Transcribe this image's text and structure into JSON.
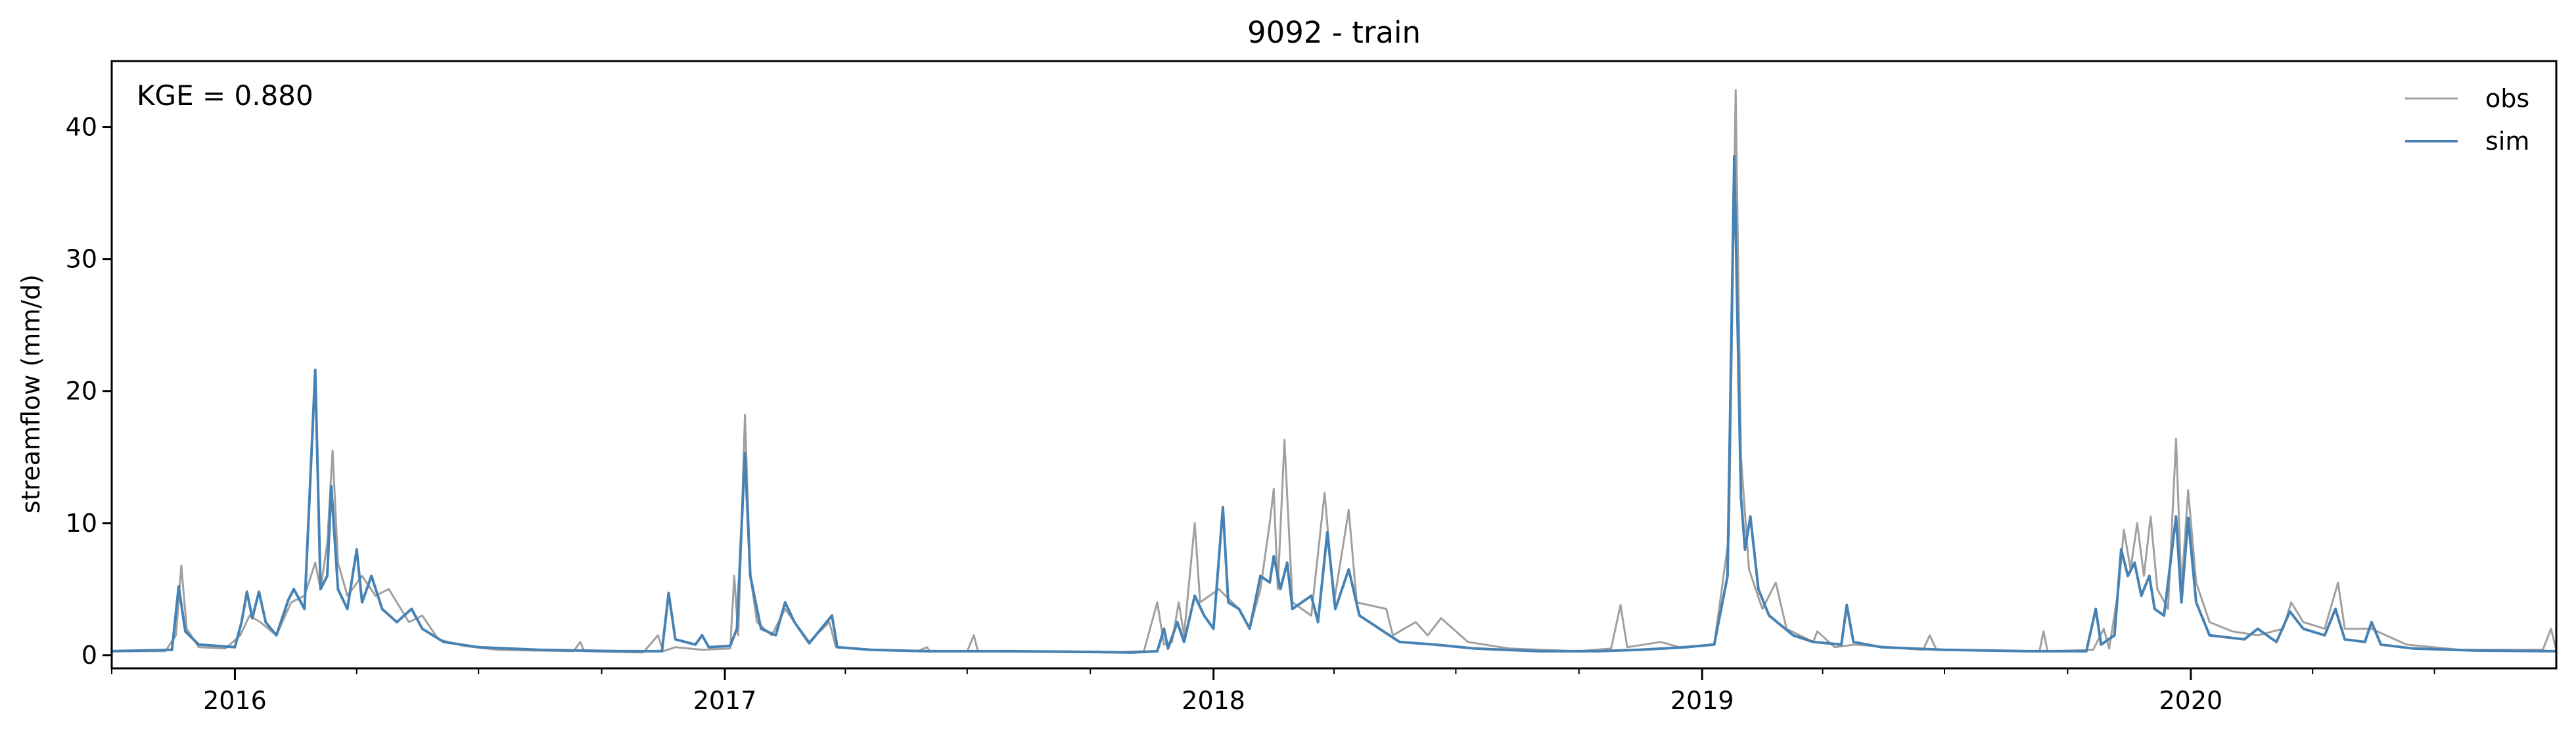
{
  "chart_data": {
    "type": "line",
    "title": "9092 - train",
    "xlabel": "",
    "ylabel": "streamflow (mm/d)",
    "xlim": [
      "2015-10-01",
      "2020-09-30"
    ],
    "ylim": [
      -1,
      45
    ],
    "yticks": [
      0,
      10,
      20,
      30,
      40
    ],
    "xticks": [
      {
        "label": "2016",
        "date": "2016-01-01"
      },
      {
        "label": "2017",
        "date": "2017-01-01"
      },
      {
        "label": "2018",
        "date": "2018-01-01"
      },
      {
        "label": "2019",
        "date": "2019-01-01"
      },
      {
        "label": "2020",
        "date": "2020-01-01"
      }
    ],
    "grid": false,
    "legend_position": "top-right",
    "annotation": "KGE = 0.880",
    "series": [
      {
        "name": "obs",
        "color": "#a0a0a0",
        "points": [
          [
            "2015-10-01",
            0.3
          ],
          [
            "2015-11-10",
            0.3
          ],
          [
            "2015-11-18",
            1.5
          ],
          [
            "2015-11-22",
            6.8
          ],
          [
            "2015-11-26",
            2.0
          ],
          [
            "2015-12-05",
            0.6
          ],
          [
            "2015-12-25",
            0.5
          ],
          [
            "2016-01-05",
            1.5
          ],
          [
            "2016-01-12",
            3.0
          ],
          [
            "2016-01-20",
            2.5
          ],
          [
            "2016-02-01",
            1.5
          ],
          [
            "2016-02-12",
            4.0
          ],
          [
            "2016-02-22",
            4.5
          ],
          [
            "2016-03-01",
            7.0
          ],
          [
            "2016-03-05",
            5.0
          ],
          [
            "2016-03-10",
            8.5
          ],
          [
            "2016-03-14",
            15.5
          ],
          [
            "2016-03-18",
            7.0
          ],
          [
            "2016-03-25",
            4.5
          ],
          [
            "2016-04-05",
            6.0
          ],
          [
            "2016-04-15",
            4.5
          ],
          [
            "2016-04-25",
            5.0
          ],
          [
            "2016-05-10",
            2.5
          ],
          [
            "2016-05-20",
            3.0
          ],
          [
            "2016-06-01",
            1.2
          ],
          [
            "2016-06-20",
            0.7
          ],
          [
            "2016-07-15",
            0.4
          ],
          [
            "2016-09-10",
            0.3
          ],
          [
            "2016-09-15",
            1.0
          ],
          [
            "2016-09-18",
            0.3
          ],
          [
            "2016-11-01",
            0.2
          ],
          [
            "2016-11-12",
            1.5
          ],
          [
            "2016-11-16",
            0.3
          ],
          [
            "2016-11-25",
            0.6
          ],
          [
            "2016-12-15",
            0.4
          ],
          [
            "2017-01-05",
            0.5
          ],
          [
            "2017-01-08",
            6.0
          ],
          [
            "2017-01-11",
            1.5
          ],
          [
            "2017-01-16",
            18.2
          ],
          [
            "2017-01-20",
            6.0
          ],
          [
            "2017-01-25",
            2.5
          ],
          [
            "2017-02-05",
            1.5
          ],
          [
            "2017-02-15",
            3.5
          ],
          [
            "2017-02-22",
            2.5
          ],
          [
            "2017-03-05",
            1.0
          ],
          [
            "2017-03-20",
            2.5
          ],
          [
            "2017-03-25",
            0.6
          ],
          [
            "2017-04-20",
            0.4
          ],
          [
            "2017-05-25",
            0.3
          ],
          [
            "2017-06-01",
            0.6
          ],
          [
            "2017-06-03",
            0.3
          ],
          [
            "2017-07-01",
            0.3
          ],
          [
            "2017-07-06",
            1.5
          ],
          [
            "2017-07-09",
            0.3
          ],
          [
            "2017-10-15",
            0.2
          ],
          [
            "2017-11-10",
            0.3
          ],
          [
            "2017-11-20",
            4.0
          ],
          [
            "2017-11-25",
            0.8
          ],
          [
            "2017-12-01",
            1.0
          ],
          [
            "2017-12-06",
            4.0
          ],
          [
            "2017-12-10",
            1.5
          ],
          [
            "2017-12-18",
            10.0
          ],
          [
            "2017-12-22",
            4.0
          ],
          [
            "2018-01-05",
            5.0
          ],
          [
            "2018-01-15",
            4.0
          ],
          [
            "2018-01-20",
            3.5
          ],
          [
            "2018-01-28",
            2.0
          ],
          [
            "2018-02-05",
            5.0
          ],
          [
            "2018-02-12",
            10.0
          ],
          [
            "2018-02-15",
            12.6
          ],
          [
            "2018-02-18",
            5.0
          ],
          [
            "2018-02-23",
            16.3
          ],
          [
            "2018-03-01",
            4.0
          ],
          [
            "2018-03-15",
            3.0
          ],
          [
            "2018-03-25",
            12.3
          ],
          [
            "2018-04-01",
            4.0
          ],
          [
            "2018-04-12",
            11.0
          ],
          [
            "2018-04-18",
            4.0
          ],
          [
            "2018-05-10",
            3.5
          ],
          [
            "2018-05-15",
            1.5
          ],
          [
            "2018-06-01",
            2.5
          ],
          [
            "2018-06-10",
            1.5
          ],
          [
            "2018-06-20",
            2.8
          ],
          [
            "2018-07-10",
            1.0
          ],
          [
            "2018-08-10",
            0.5
          ],
          [
            "2018-09-30",
            0.3
          ],
          [
            "2018-10-25",
            0.5
          ],
          [
            "2018-11-01",
            3.8
          ],
          [
            "2018-11-06",
            0.6
          ],
          [
            "2018-12-01",
            1.0
          ],
          [
            "2018-12-15",
            0.6
          ],
          [
            "2019-01-10",
            0.8
          ],
          [
            "2019-01-21",
            9.0
          ],
          [
            "2019-01-26",
            42.8
          ],
          [
            "2019-01-30",
            15.0
          ],
          [
            "2019-02-05",
            6.5
          ],
          [
            "2019-02-15",
            3.5
          ],
          [
            "2019-02-25",
            5.5
          ],
          [
            "2019-03-05",
            2.0
          ],
          [
            "2019-03-25",
            1.0
          ],
          [
            "2019-03-28",
            1.8
          ],
          [
            "2019-04-10",
            0.6
          ],
          [
            "2019-04-25",
            0.8
          ],
          [
            "2019-06-15",
            0.4
          ],
          [
            "2019-06-20",
            1.5
          ],
          [
            "2019-06-25",
            0.4
          ],
          [
            "2019-09-10",
            0.3
          ],
          [
            "2019-09-13",
            1.8
          ],
          [
            "2019-09-16",
            0.3
          ],
          [
            "2019-10-20",
            0.4
          ],
          [
            "2019-10-28",
            2.0
          ],
          [
            "2019-11-01",
            0.5
          ],
          [
            "2019-11-08",
            5.0
          ],
          [
            "2019-11-12",
            9.5
          ],
          [
            "2019-11-17",
            6.5
          ],
          [
            "2019-11-22",
            10.0
          ],
          [
            "2019-11-27",
            6.0
          ],
          [
            "2019-12-02",
            10.5
          ],
          [
            "2019-12-07",
            5.0
          ],
          [
            "2019-12-15",
            3.5
          ],
          [
            "2019-12-21",
            16.4
          ],
          [
            "2019-12-25",
            5.0
          ],
          [
            "2019-12-30",
            12.5
          ],
          [
            "2020-01-05",
            5.5
          ],
          [
            "2020-01-15",
            2.5
          ],
          [
            "2020-02-01",
            1.8
          ],
          [
            "2020-02-20",
            1.5
          ],
          [
            "2020-03-10",
            2.0
          ],
          [
            "2020-03-16",
            4.0
          ],
          [
            "2020-03-25",
            2.5
          ],
          [
            "2020-04-10",
            2.0
          ],
          [
            "2020-04-20",
            5.5
          ],
          [
            "2020-04-25",
            2.0
          ],
          [
            "2020-05-15",
            2.0
          ],
          [
            "2020-06-10",
            0.8
          ],
          [
            "2020-07-20",
            0.4
          ],
          [
            "2020-09-20",
            0.4
          ],
          [
            "2020-09-26",
            2.0
          ],
          [
            "2020-09-30",
            0.4
          ]
        ]
      },
      {
        "name": "sim",
        "color": "#4682b4",
        "points": [
          [
            "2015-10-01",
            0.3
          ],
          [
            "2015-11-15",
            0.4
          ],
          [
            "2015-11-20",
            5.2
          ],
          [
            "2015-11-25",
            1.8
          ],
          [
            "2015-12-05",
            0.8
          ],
          [
            "2016-01-01",
            0.6
          ],
          [
            "2016-01-06",
            2.5
          ],
          [
            "2016-01-10",
            4.8
          ],
          [
            "2016-01-14",
            2.8
          ],
          [
            "2016-01-19",
            4.8
          ],
          [
            "2016-01-24",
            2.5
          ],
          [
            "2016-02-01",
            1.5
          ],
          [
            "2016-02-10",
            4.2
          ],
          [
            "2016-02-14",
            5.0
          ],
          [
            "2016-02-22",
            3.5
          ],
          [
            "2016-03-01",
            21.6
          ],
          [
            "2016-03-05",
            5.0
          ],
          [
            "2016-03-10",
            6.0
          ],
          [
            "2016-03-13",
            12.8
          ],
          [
            "2016-03-18",
            5.0
          ],
          [
            "2016-03-25",
            3.5
          ],
          [
            "2016-04-01",
            8.0
          ],
          [
            "2016-04-05",
            4.0
          ],
          [
            "2016-04-12",
            6.0
          ],
          [
            "2016-04-20",
            3.5
          ],
          [
            "2016-05-01",
            2.5
          ],
          [
            "2016-05-12",
            3.5
          ],
          [
            "2016-05-20",
            2.0
          ],
          [
            "2016-06-05",
            1.0
          ],
          [
            "2016-07-01",
            0.6
          ],
          [
            "2016-08-15",
            0.4
          ],
          [
            "2016-10-15",
            0.3
          ],
          [
            "2016-11-15",
            0.3
          ],
          [
            "2016-11-20",
            4.7
          ],
          [
            "2016-11-25",
            1.2
          ],
          [
            "2016-12-10",
            0.8
          ],
          [
            "2016-12-15",
            1.5
          ],
          [
            "2016-12-20",
            0.6
          ],
          [
            "2017-01-05",
            0.7
          ],
          [
            "2017-01-10",
            2.0
          ],
          [
            "2017-01-16",
            15.3
          ],
          [
            "2017-01-20",
            6.0
          ],
          [
            "2017-01-28",
            2.0
          ],
          [
            "2017-02-08",
            1.5
          ],
          [
            "2017-02-15",
            4.0
          ],
          [
            "2017-02-22",
            2.5
          ],
          [
            "2017-03-05",
            0.9
          ],
          [
            "2017-03-22",
            3.0
          ],
          [
            "2017-03-26",
            0.6
          ],
          [
            "2017-04-20",
            0.4
          ],
          [
            "2017-06-01",
            0.3
          ],
          [
            "2017-08-01",
            0.3
          ],
          [
            "2017-10-01",
            0.25
          ],
          [
            "2017-11-01",
            0.2
          ],
          [
            "2017-11-20",
            0.3
          ],
          [
            "2017-11-25",
            2.0
          ],
          [
            "2017-11-28",
            0.5
          ],
          [
            "2017-12-05",
            2.5
          ],
          [
            "2017-12-10",
            1.0
          ],
          [
            "2017-12-18",
            4.5
          ],
          [
            "2017-12-25",
            3.0
          ],
          [
            "2018-01-01",
            2.0
          ],
          [
            "2018-01-08",
            11.2
          ],
          [
            "2018-01-12",
            4.0
          ],
          [
            "2018-01-20",
            3.5
          ],
          [
            "2018-01-28",
            2.0
          ],
          [
            "2018-02-05",
            6.0
          ],
          [
            "2018-02-12",
            5.5
          ],
          [
            "2018-02-15",
            7.5
          ],
          [
            "2018-02-20",
            5.0
          ],
          [
            "2018-02-25",
            7.0
          ],
          [
            "2018-03-01",
            3.5
          ],
          [
            "2018-03-15",
            4.5
          ],
          [
            "2018-03-20",
            2.5
          ],
          [
            "2018-03-27",
            9.3
          ],
          [
            "2018-04-02",
            3.5
          ],
          [
            "2018-04-12",
            6.5
          ],
          [
            "2018-04-20",
            3.0
          ],
          [
            "2018-05-05",
            2.0
          ],
          [
            "2018-05-20",
            1.0
          ],
          [
            "2018-06-15",
            0.8
          ],
          [
            "2018-07-15",
            0.5
          ],
          [
            "2018-09-01",
            0.3
          ],
          [
            "2018-10-15",
            0.3
          ],
          [
            "2018-11-15",
            0.4
          ],
          [
            "2018-12-20",
            0.6
          ],
          [
            "2019-01-10",
            0.8
          ],
          [
            "2019-01-20",
            6.0
          ],
          [
            "2019-01-25",
            37.8
          ],
          [
            "2019-01-30",
            12.0
          ],
          [
            "2019-02-02",
            8.0
          ],
          [
            "2019-02-06",
            10.5
          ],
          [
            "2019-02-12",
            5.0
          ],
          [
            "2019-02-20",
            3.0
          ],
          [
            "2019-03-10",
            1.5
          ],
          [
            "2019-03-25",
            1.0
          ],
          [
            "2019-04-15",
            0.8
          ],
          [
            "2019-04-19",
            3.8
          ],
          [
            "2019-04-24",
            1.0
          ],
          [
            "2019-05-15",
            0.6
          ],
          [
            "2019-07-01",
            0.4
          ],
          [
            "2019-09-01",
            0.3
          ],
          [
            "2019-10-15",
            0.3
          ],
          [
            "2019-10-22",
            3.5
          ],
          [
            "2019-10-26",
            0.8
          ],
          [
            "2019-11-05",
            1.5
          ],
          [
            "2019-11-10",
            8.0
          ],
          [
            "2019-11-15",
            6.0
          ],
          [
            "2019-11-20",
            7.0
          ],
          [
            "2019-11-25",
            4.5
          ],
          [
            "2019-12-01",
            6.0
          ],
          [
            "2019-12-05",
            3.5
          ],
          [
            "2019-12-12",
            3.0
          ],
          [
            "2019-12-21",
            10.5
          ],
          [
            "2019-12-25",
            4.0
          ],
          [
            "2019-12-30",
            10.4
          ],
          [
            "2020-01-05",
            4.0
          ],
          [
            "2020-01-15",
            1.5
          ],
          [
            "2020-02-10",
            1.2
          ],
          [
            "2020-02-20",
            2.0
          ],
          [
            "2020-03-05",
            1.0
          ],
          [
            "2020-03-15",
            3.3
          ],
          [
            "2020-03-25",
            2.0
          ],
          [
            "2020-04-10",
            1.5
          ],
          [
            "2020-04-18",
            3.5
          ],
          [
            "2020-04-25",
            1.2
          ],
          [
            "2020-05-10",
            1.0
          ],
          [
            "2020-05-15",
            2.5
          ],
          [
            "2020-05-22",
            0.8
          ],
          [
            "2020-06-15",
            0.5
          ],
          [
            "2020-08-01",
            0.35
          ],
          [
            "2020-09-30",
            0.3
          ]
        ]
      }
    ]
  }
}
